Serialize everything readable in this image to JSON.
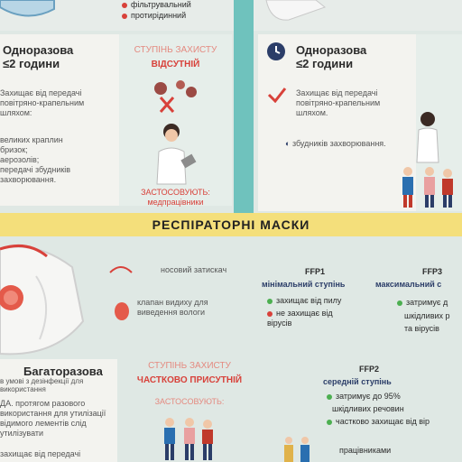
{
  "colors": {
    "accent": "#d8413a",
    "teal": "#6fc2bd",
    "yellow_bar": "#f4df7b",
    "navy": "#2b3d68",
    "green": "#4caf50"
  },
  "top": {
    "line1": "фільтрувальний",
    "line2": "протирідинний"
  },
  "left_card": {
    "title": "Одноразова\n≤2 години",
    "protection_label": "СТУПІНЬ ЗАХИСТУ",
    "protection_value": "ВІДСУТНІЙ",
    "protects": "Захищає від передачі повітряно-крапельним шляхом:",
    "items": "великих краплин\nбризок;\nаерозолів;\nпередачі збудників\nзахворювання.",
    "applied_label": "ЗАСТОСОВУЮТЬ:",
    "applied_value": "медпрацівники"
  },
  "right_card": {
    "title": "Одноразова\n≤2 години",
    "protects": "Захищає від передачі повітряно-крапельним шляхом.",
    "item": "збудників захворювання."
  },
  "section_title": "РЕСПІРАТОРНІ МАСКИ",
  "respirator": {
    "nose_clip": "носовий затискач",
    "valve": "клапан видиху для виведення вологи",
    "ffp1": {
      "label": "FFP1",
      "level": "мінімальний ступінь",
      "item1": "захищає від пилу",
      "item2": "не захищає від вірусів"
    },
    "ffp3": {
      "label": "FFP3",
      "level": "максимальний с",
      "item1": "затримує д",
      "item2": "шкідливих р",
      "item3": "та вірусів"
    },
    "reusable_title": "Багаторазова",
    "reusable_text": "в умові з дезінфекції для використання",
    "reusable_text2": "ДА. протягом разового використання для утилізації відимого лементів слід утилізувати",
    "reusable_text3": "захищає від передачі",
    "protection_label": "СТУПІНЬ ЗАХИСТУ",
    "protection_value": "ЧАСТКОВО ПРИСУТНІЙ",
    "applied_label": "ЗАСТОСОВУЮТЬ:",
    "ffp2": {
      "label": "FFP2",
      "level": "середній ступінь",
      "item1": "затримує до 95%",
      "item2": "шкідливих речовин",
      "item3": "частково захищає від вір"
    },
    "workers": "працівниками"
  }
}
